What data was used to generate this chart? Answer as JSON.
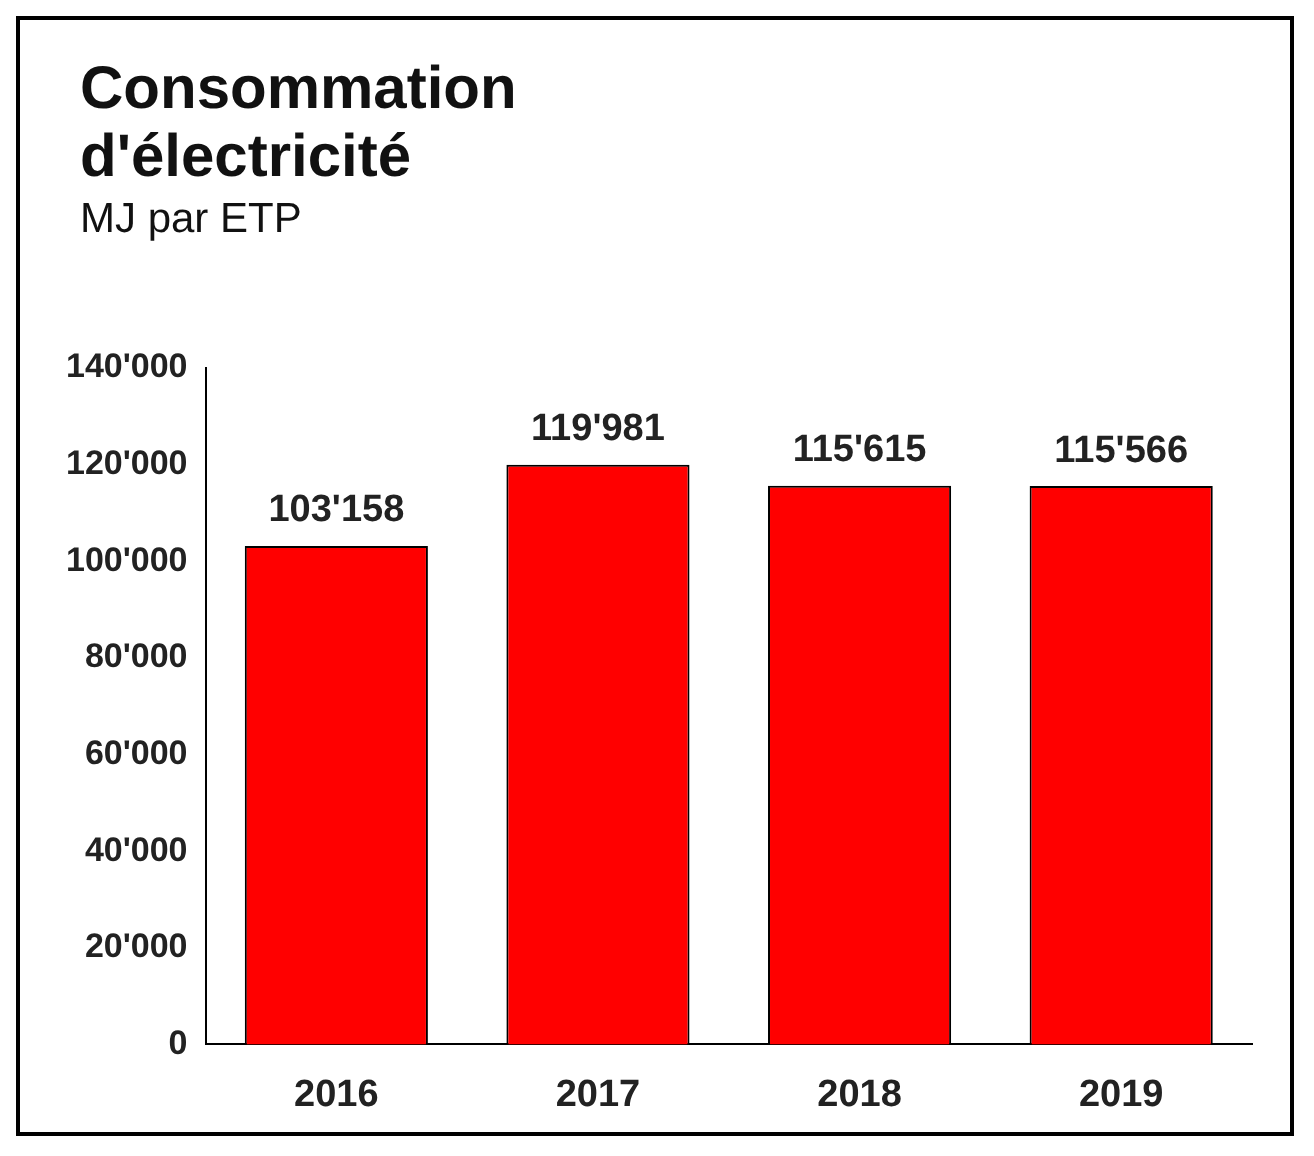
{
  "chart_data": {
    "type": "bar",
    "title": "Consommation d'électricité",
    "subtitle": "MJ par ETP",
    "categories": [
      "2016",
      "2017",
      "2018",
      "2019"
    ],
    "values": [
      103158,
      119981,
      115615,
      115566
    ],
    "color": "#ff0000",
    "ylim": [
      0,
      140000
    ],
    "value_labels": [
      "103'158",
      "119'981",
      "115'615",
      "115'566"
    ],
    "yticks": [
      0,
      {
        "value": 20000,
        "label": "20'000"
      },
      {
        "value": 40000,
        "label": "40'000"
      },
      {
        "value": 60000,
        "label": "60'000"
      },
      {
        "value": 80000,
        "label": "80'000"
      },
      {
        "value": 100000,
        "label": "100'000"
      },
      {
        "value": 120000,
        "label": "120'000"
      },
      {
        "value": 140000,
        "label": "140'000"
      }
    ],
    "grid": false,
    "legend": false
  }
}
